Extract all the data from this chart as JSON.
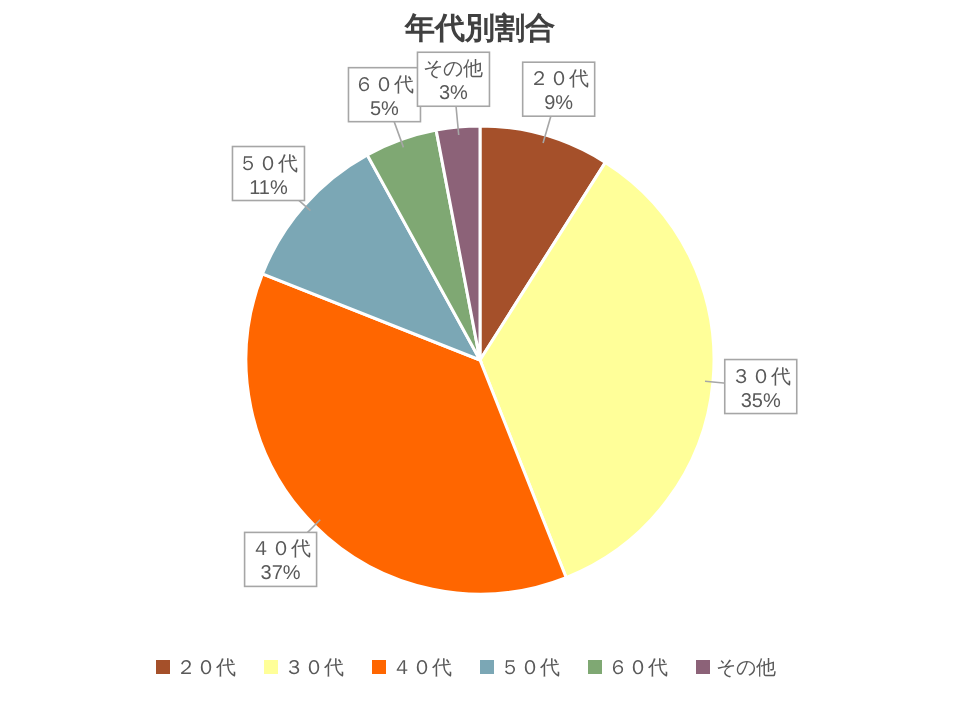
{
  "chart_data": {
    "type": "pie",
    "title": "年代別割合",
    "categories": [
      "２０代",
      "３０代",
      "４０代",
      "５０代",
      "６０代",
      "その他"
    ],
    "values": [
      9,
      35,
      37,
      11,
      5,
      3
    ],
    "colors": [
      "#a5502a",
      "#ffff99",
      "#ff6600",
      "#7ba7b5",
      "#7fa873",
      "#8c6278"
    ],
    "value_labels": [
      "9%",
      "35%",
      "37%",
      "11%",
      "5%",
      "3%"
    ],
    "legend": "bottom"
  }
}
